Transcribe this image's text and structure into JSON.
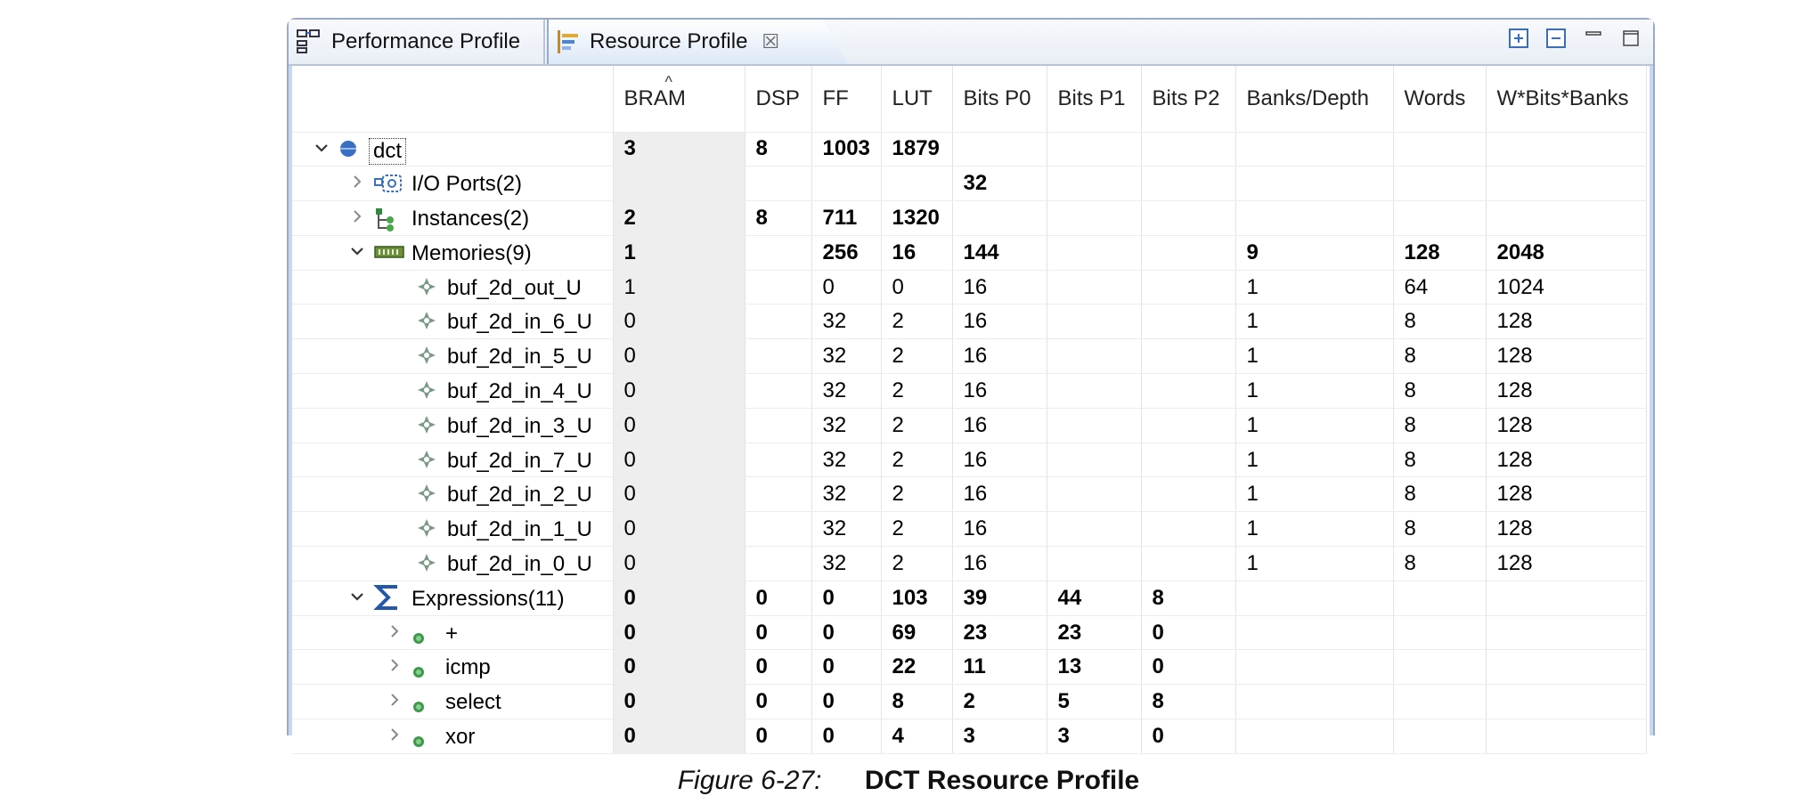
{
  "tabs": {
    "performance": "Performance Profile",
    "resource": "Resource Profile"
  },
  "columns": [
    "BRAM",
    "DSP",
    "FF",
    "LUT",
    "Bits P0",
    "Bits P1",
    "Bits P2",
    "Banks/Depth",
    "Words",
    "W*Bits*Banks"
  ],
  "rows": [
    {
      "name": "dct",
      "level": 0,
      "expander": "open",
      "icon": "circle-node-icon",
      "bold": true,
      "values": [
        "3",
        "8",
        "1003",
        "1879",
        "",
        "",
        "",
        "",
        "",
        ""
      ]
    },
    {
      "name": "I/O Ports(2)",
      "level": 1,
      "expander": "closed",
      "icon": "io-ports-icon",
      "bold": true,
      "values": [
        "",
        "",
        "",
        "",
        "32",
        "",
        "",
        "",
        "",
        ""
      ]
    },
    {
      "name": "Instances(2)",
      "level": 1,
      "expander": "closed",
      "icon": "instances-icon",
      "bold": true,
      "values": [
        "2",
        "8",
        "711",
        "1320",
        "",
        "",
        "",
        "",
        "",
        ""
      ]
    },
    {
      "name": "Memories(9)",
      "level": 1,
      "expander": "open",
      "icon": "memory-icon",
      "bold": true,
      "values": [
        "1",
        "",
        "256",
        "16",
        "144",
        "",
        "",
        "9",
        "128",
        "2048"
      ]
    },
    {
      "name": "buf_2d_out_U",
      "level": 2,
      "expander": "none",
      "icon": "memory-item-icon",
      "bold": false,
      "values": [
        "1",
        "",
        "0",
        "0",
        "16",
        "",
        "",
        "1",
        "64",
        "1024"
      ]
    },
    {
      "name": "buf_2d_in_6_U",
      "level": 2,
      "expander": "none",
      "icon": "memory-item-icon",
      "bold": false,
      "values": [
        "0",
        "",
        "32",
        "2",
        "16",
        "",
        "",
        "1",
        "8",
        "128"
      ]
    },
    {
      "name": "buf_2d_in_5_U",
      "level": 2,
      "expander": "none",
      "icon": "memory-item-icon",
      "bold": false,
      "values": [
        "0",
        "",
        "32",
        "2",
        "16",
        "",
        "",
        "1",
        "8",
        "128"
      ]
    },
    {
      "name": "buf_2d_in_4_U",
      "level": 2,
      "expander": "none",
      "icon": "memory-item-icon",
      "bold": false,
      "values": [
        "0",
        "",
        "32",
        "2",
        "16",
        "",
        "",
        "1",
        "8",
        "128"
      ]
    },
    {
      "name": "buf_2d_in_3_U",
      "level": 2,
      "expander": "none",
      "icon": "memory-item-icon",
      "bold": false,
      "values": [
        "0",
        "",
        "32",
        "2",
        "16",
        "",
        "",
        "1",
        "8",
        "128"
      ]
    },
    {
      "name": "buf_2d_in_7_U",
      "level": 2,
      "expander": "none",
      "icon": "memory-item-icon",
      "bold": false,
      "values": [
        "0",
        "",
        "32",
        "2",
        "16",
        "",
        "",
        "1",
        "8",
        "128"
      ]
    },
    {
      "name": "buf_2d_in_2_U",
      "level": 2,
      "expander": "none",
      "icon": "memory-item-icon",
      "bold": false,
      "values": [
        "0",
        "",
        "32",
        "2",
        "16",
        "",
        "",
        "1",
        "8",
        "128"
      ]
    },
    {
      "name": "buf_2d_in_1_U",
      "level": 2,
      "expander": "none",
      "icon": "memory-item-icon",
      "bold": false,
      "values": [
        "0",
        "",
        "32",
        "2",
        "16",
        "",
        "",
        "1",
        "8",
        "128"
      ]
    },
    {
      "name": "buf_2d_in_0_U",
      "level": 2,
      "expander": "none",
      "icon": "memory-item-icon",
      "bold": false,
      "values": [
        "0",
        "",
        "32",
        "2",
        "16",
        "",
        "",
        "1",
        "8",
        "128"
      ]
    },
    {
      "name": "Expressions(11)",
      "level": 1,
      "expander": "open",
      "icon": "sigma-icon",
      "bold": true,
      "values": [
        "0",
        "0",
        "0",
        "103",
        "39",
        "44",
        "8",
        "",
        "",
        ""
      ]
    },
    {
      "name": "+",
      "level": 2,
      "expander": "closed",
      "icon": "green-dot-icon",
      "bold": true,
      "values": [
        "0",
        "0",
        "0",
        "69",
        "23",
        "23",
        "0",
        "",
        "",
        ""
      ]
    },
    {
      "name": "icmp",
      "level": 2,
      "expander": "closed",
      "icon": "green-dot-icon",
      "bold": true,
      "values": [
        "0",
        "0",
        "0",
        "22",
        "11",
        "13",
        "0",
        "",
        "",
        ""
      ]
    },
    {
      "name": "select",
      "level": 2,
      "expander": "closed",
      "icon": "green-dot-icon",
      "bold": true,
      "values": [
        "0",
        "0",
        "0",
        "8",
        "2",
        "5",
        "8",
        "",
        "",
        ""
      ]
    },
    {
      "name": "xor",
      "level": 2,
      "expander": "closed",
      "icon": "green-dot-icon",
      "bold": true,
      "values": [
        "0",
        "0",
        "0",
        "4",
        "3",
        "3",
        "0",
        "",
        "",
        ""
      ]
    }
  ],
  "caption": {
    "figure": "Figure 6-27:",
    "title": "DCT Resource Profile"
  }
}
